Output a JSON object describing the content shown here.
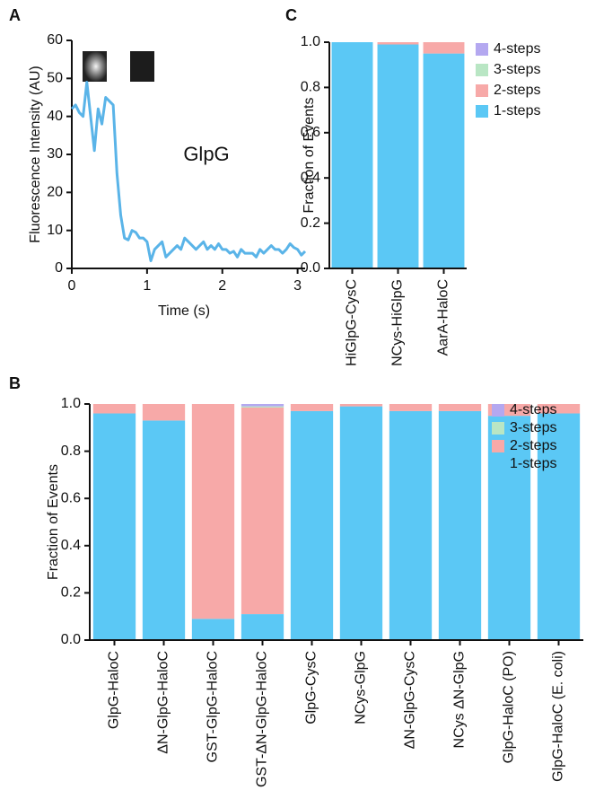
{
  "chart_data": [
    {
      "type": "line",
      "panel": "A",
      "annotation": "GlpG",
      "x_label": "Time (s)",
      "y_label": "Fluorescence Intensity (AU)",
      "xlim": [
        0,
        3.1
      ],
      "ylim": [
        0,
        60
      ],
      "xticks": [
        0,
        1,
        2,
        3
      ],
      "yticks": [
        0,
        10,
        20,
        30,
        40,
        50,
        60
      ],
      "series": [
        {
          "name": "GlpG",
          "color": "#5ab4e8",
          "x": [
            0,
            0.05,
            0.1,
            0.15,
            0.2,
            0.25,
            0.3,
            0.35,
            0.4,
            0.45,
            0.5,
            0.55,
            0.6,
            0.65,
            0.7,
            0.75,
            0.8,
            0.85,
            0.9,
            0.95,
            1.0,
            1.05,
            1.1,
            1.15,
            1.2,
            1.25,
            1.3,
            1.35,
            1.4,
            1.45,
            1.5,
            1.55,
            1.6,
            1.65,
            1.7,
            1.75,
            1.8,
            1.85,
            1.9,
            1.95,
            2.0,
            2.05,
            2.1,
            2.15,
            2.2,
            2.25,
            2.3,
            2.35,
            2.4,
            2.45,
            2.5,
            2.55,
            2.6,
            2.65,
            2.7,
            2.75,
            2.8,
            2.85,
            2.9,
            2.95,
            3.0,
            3.05,
            3.1
          ],
          "values": [
            42,
            43,
            41,
            40,
            49,
            40,
            31,
            42,
            38,
            45,
            44,
            43,
            25,
            14,
            8,
            7.5,
            10,
            9.5,
            8,
            8,
            7,
            2,
            5,
            6,
            7,
            3,
            4,
            5,
            6,
            5,
            8,
            7,
            6,
            5,
            6,
            7,
            5,
            6,
            5,
            6.5,
            5,
            5,
            4,
            4.5,
            3,
            5,
            4,
            4,
            4,
            3,
            5,
            4,
            5,
            6,
            5,
            5,
            4,
            5,
            6.5,
            5.5,
            5,
            3.5,
            4.5
          ]
        }
      ]
    },
    {
      "type": "stacked_bar",
      "panel": "B",
      "y_label": "Fraction of Events",
      "ylim": [
        0,
        1
      ],
      "yticks": [
        {
          "value": 0,
          "label": "0.0"
        },
        0.2,
        0.4,
        0.6,
        0.8,
        {
          "value": 1,
          "label": "1.0"
        }
      ],
      "categories": [
        "GlpG-HaloC",
        "ΔN-GlpG-HaloC",
        "GST-GlpG-HaloC",
        "GST-ΔN-GlpG-HaloC",
        "GlpG-CysC",
        "NCys-GlpG",
        "ΔN-GlpG-CysC",
        "NCys ΔN-GlpG",
        "GlpG-HaloC (PO)",
        "GlpG-HaloC (E. coli)"
      ],
      "series": [
        {
          "name": "1-steps",
          "color": "#5bc8f5",
          "values": [
            0.96,
            0.93,
            0.09,
            0.11,
            0.97,
            0.99,
            0.97,
            0.97,
            0.95,
            0.96
          ]
        },
        {
          "name": "2-steps",
          "color": "#f7a9a8",
          "values": [
            0.04,
            0.07,
            0.91,
            0.875,
            0.03,
            0.01,
            0.03,
            0.03,
            0.05,
            0.04
          ]
        },
        {
          "name": "3-steps",
          "color": "#b9e6c4",
          "values": [
            0,
            0,
            0,
            0.005,
            0,
            0,
            0,
            0,
            0,
            0
          ]
        },
        {
          "name": "4-steps",
          "color": "#b4a8f0",
          "values": [
            0,
            0,
            0,
            0.01,
            0,
            0,
            0,
            0,
            0,
            0
          ]
        }
      ]
    },
    {
      "type": "stacked_bar",
      "panel": "C",
      "y_label": "Fraction of Events",
      "ylim": [
        0,
        1
      ],
      "yticks": [
        {
          "value": 0,
          "label": "0.0"
        },
        0.2,
        0.4,
        0.6,
        0.8,
        {
          "value": 1,
          "label": "1.0"
        }
      ],
      "categories": [
        "HiGlpG-CysC",
        "NCys-HiGlpG",
        "AarA-HaloC"
      ],
      "series": [
        {
          "name": "1-steps",
          "color": "#5bc8f5",
          "values": [
            1.0,
            0.99,
            0.95
          ]
        },
        {
          "name": "2-steps",
          "color": "#f7a9a8",
          "values": [
            0,
            0.01,
            0.05
          ]
        },
        {
          "name": "3-steps",
          "color": "#b9e6c4",
          "values": [
            0,
            0,
            0
          ]
        },
        {
          "name": "4-steps",
          "color": "#b4a8f0",
          "values": [
            0,
            0,
            0
          ]
        }
      ]
    }
  ]
}
